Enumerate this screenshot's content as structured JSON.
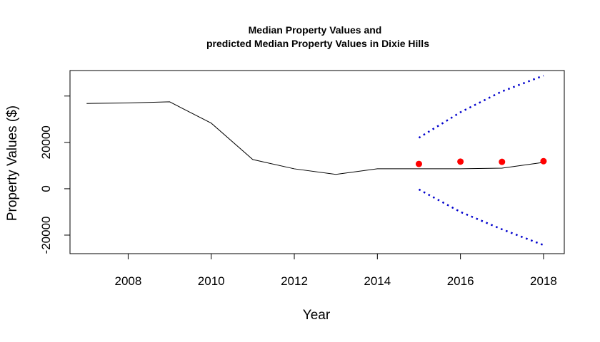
{
  "chart_data": {
    "type": "line",
    "title_line1": "Median Property Values and",
    "title_line2": "predicted Median Property Values in Dixie Hills",
    "xlabel": "Year",
    "ylabel": "Property Values ($)",
    "xlim": [
      2006.6,
      2018.5
    ],
    "ylim": [
      -28000,
      51000
    ],
    "x_ticks": [
      2008,
      2010,
      2012,
      2014,
      2016,
      2018
    ],
    "y_ticks": [
      -20000,
      0,
      20000,
      40000
    ],
    "y_tick_labels": [
      "-20000",
      "0",
      "20000",
      ""
    ],
    "grid": false,
    "legend": "none",
    "series": [
      {
        "style": "line",
        "color": "#000000",
        "x": [
          2007,
          2008,
          2009,
          2010,
          2011,
          2012,
          2013,
          2014,
          2015,
          2016,
          2017,
          2018
        ],
        "y": [
          36800,
          37000,
          37500,
          28300,
          12600,
          8600,
          6200,
          8600,
          8600,
          8600,
          8900,
          11400
        ]
      },
      {
        "style": "points",
        "color": "#ff0000",
        "x": [
          2015,
          2016,
          2017,
          2018
        ],
        "y": [
          10700,
          11700,
          11600,
          11900
        ]
      },
      {
        "style": "dotted",
        "color": "#0000cd",
        "x": [
          2015,
          2016,
          2017,
          2018
        ],
        "y": [
          22000,
          33000,
          42000,
          48800
        ]
      },
      {
        "style": "dotted",
        "color": "#0000cd",
        "x": [
          2015,
          2016,
          2017,
          2018
        ],
        "y": [
          -300,
          -10000,
          -17500,
          -24300
        ]
      }
    ]
  }
}
